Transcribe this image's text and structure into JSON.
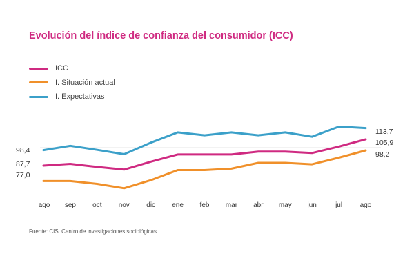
{
  "chart_data": {
    "type": "line",
    "title": "Evolución del índice de confianza del consumidor (ICC)",
    "categories": [
      "ago",
      "sep",
      "oct",
      "nov",
      "dic",
      "ene",
      "feb",
      "mar",
      "abr",
      "may",
      "jun",
      "jul",
      "ago"
    ],
    "series": [
      {
        "name": "ICC",
        "color": "#cf2a81",
        "values": [
          87.7,
          88.9,
          86.8,
          84.9,
          90.4,
          95.4,
          95.4,
          95.4,
          97.4,
          97.4,
          96.4,
          100.9,
          105.9
        ]
      },
      {
        "name": "I. Situación actual",
        "color": "#f0902a",
        "values": [
          77.0,
          77.0,
          75.0,
          72.0,
          77.6,
          84.6,
          84.6,
          85.6,
          89.6,
          89.6,
          88.6,
          93.2,
          98.2
        ]
      },
      {
        "name": "I. Expectativas",
        "color": "#3ba0c9",
        "values": [
          98.4,
          101.4,
          98.6,
          95.6,
          103.6,
          110.7,
          108.7,
          110.7,
          108.7,
          110.7,
          107.7,
          114.7,
          113.7
        ]
      }
    ],
    "start_labels": [
      "98,4",
      "87,7",
      "77,0"
    ],
    "end_labels": [
      "113,7",
      "105,9",
      "98,2"
    ],
    "ylim": [
      70,
      125
    ],
    "reference_line": 100
  },
  "source_text": "Fuente: CIS. Centro de investigaciones sociológicas"
}
